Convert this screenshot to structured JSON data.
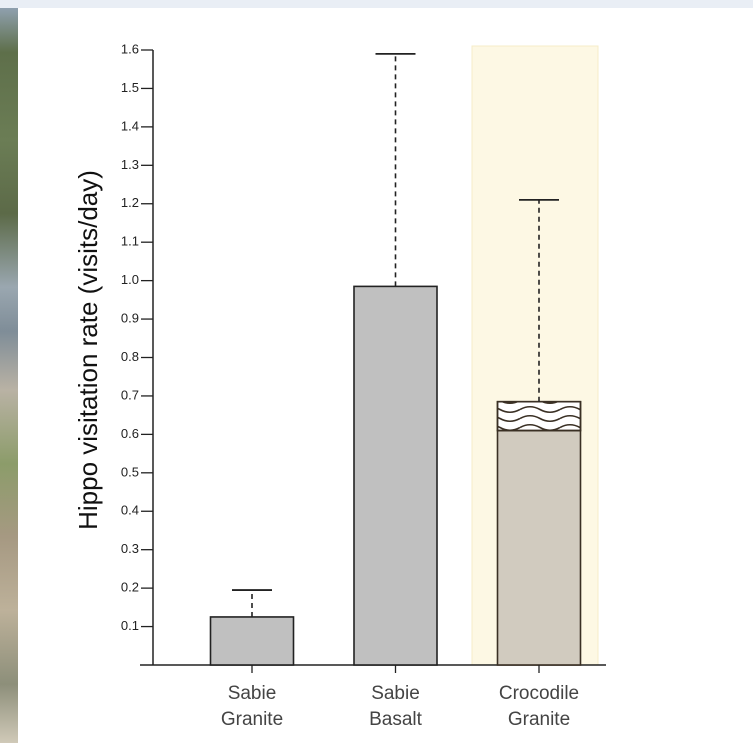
{
  "chart_data": {
    "type": "bar",
    "y_label": "Hippo visitation rate (visits/day)",
    "categories": [
      "Sabie\nGranite",
      "Sabie\nBasalt",
      "Crocodile\nGranite"
    ],
    "series": [
      {
        "values": [
          0.125,
          0.985,
          0.61
        ],
        "colors": [
          "#c0c0c0",
          "#c0c0c0",
          "#d1cbbf"
        ]
      },
      {
        "values": [
          null,
          null,
          0.075
        ],
        "color": "#ffffff"
      }
    ],
    "errors": [
      0.07,
      0.605,
      0.525
    ],
    "ylim": [
      0,
      1.6
    ],
    "yticks": [
      0.1,
      0.2,
      0.3,
      0.4,
      0.5,
      0.6,
      0.7,
      0.8,
      0.9,
      {
        "value": 1,
        "label": "1.0"
      },
      1.1,
      1.2,
      1.3,
      1.4,
      1.5,
      1.6
    ],
    "highlight": {
      "category": 2,
      "color": "#fdf8e4"
    }
  }
}
